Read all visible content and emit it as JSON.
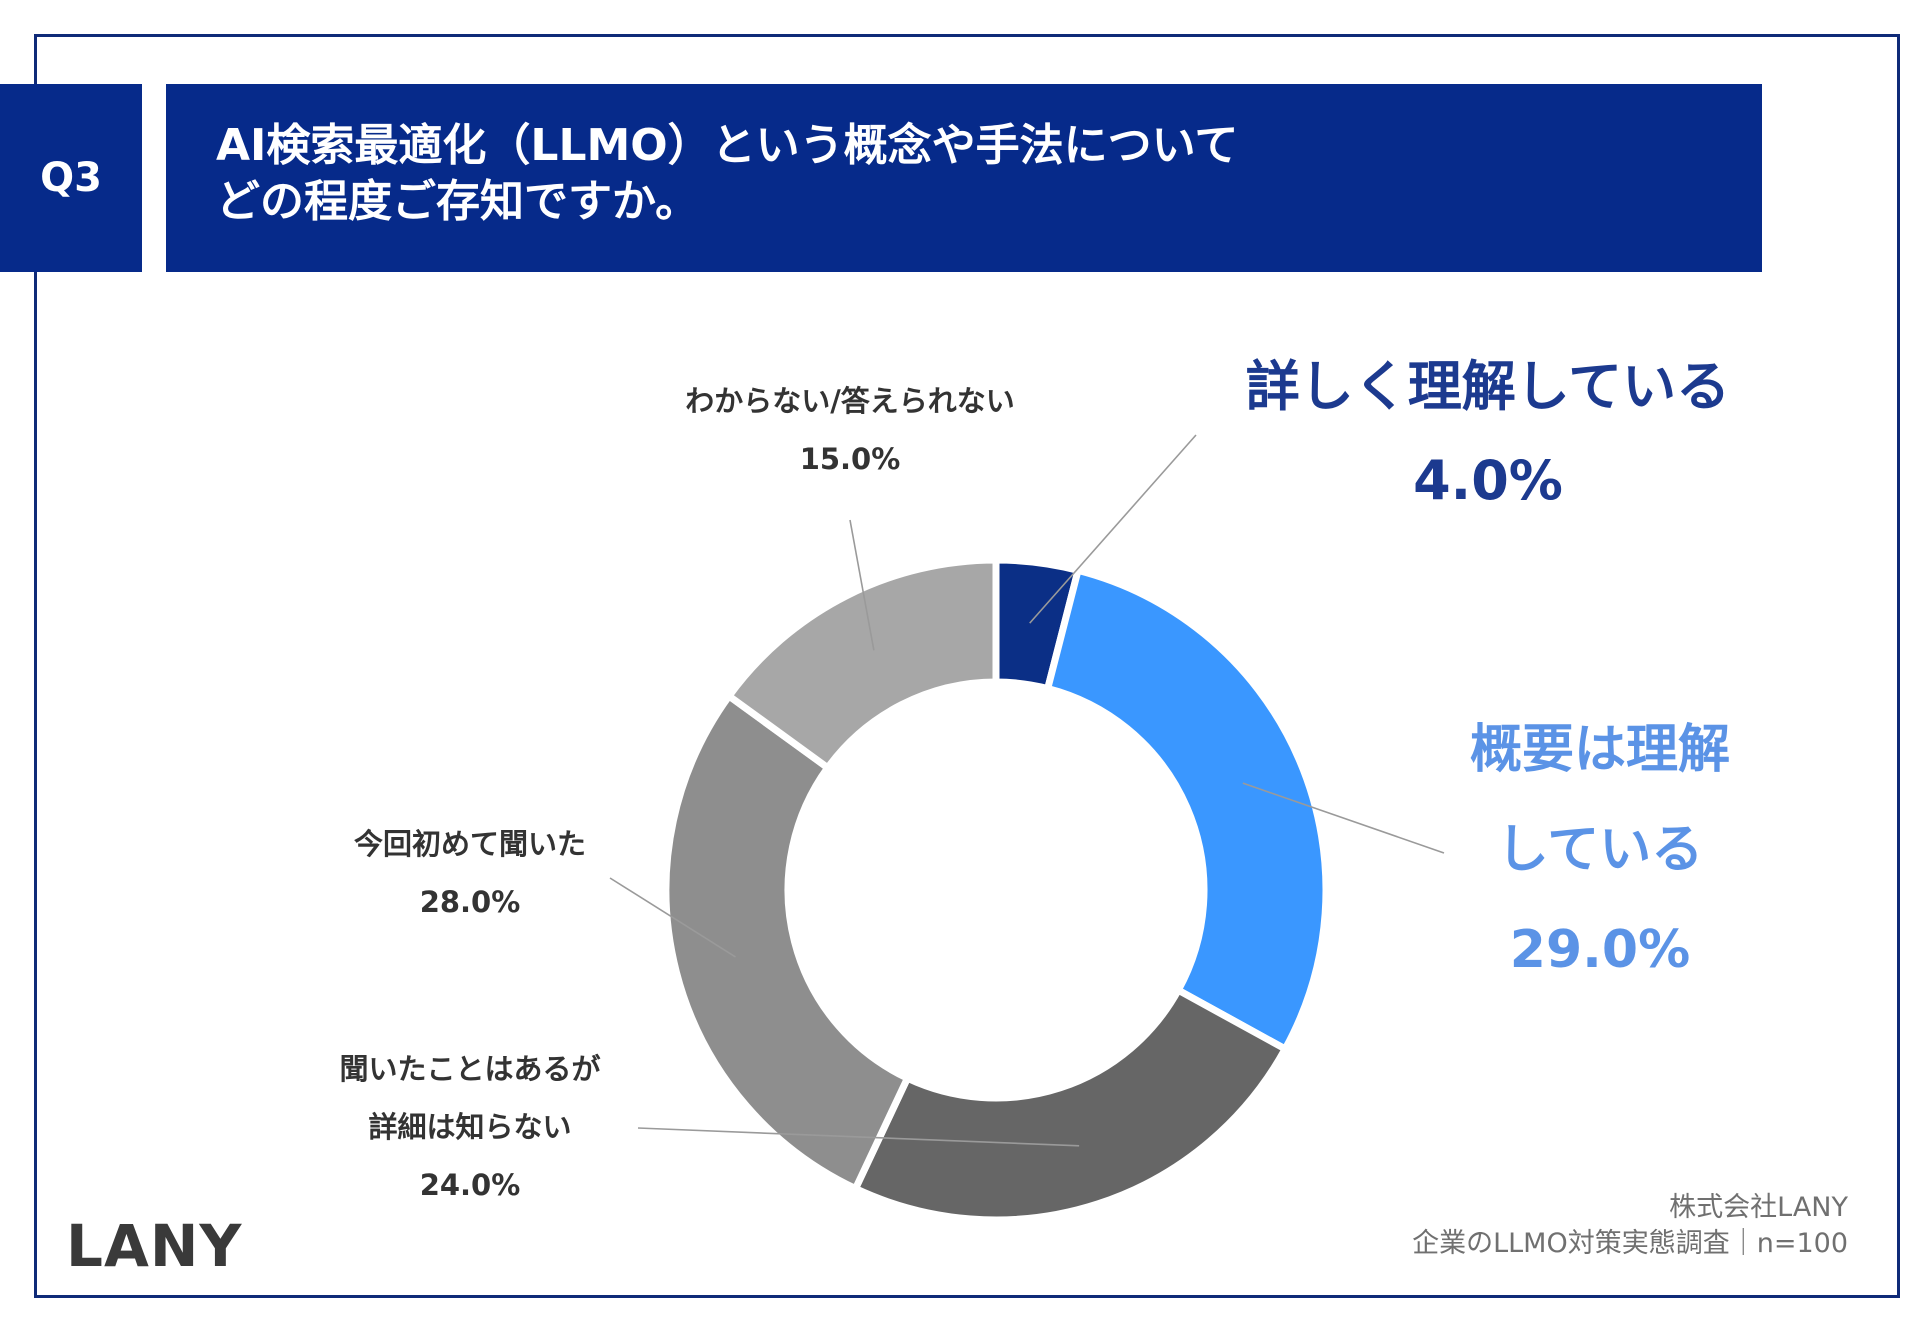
{
  "header": {
    "question_badge": "Q3",
    "title_line1": "AI検索最適化（LLMO）という概念や手法について",
    "title_line2": "どの程度ご存知ですか。"
  },
  "chart_data": {
    "type": "pie",
    "donut": true,
    "title": "AI検索最適化（LLMO）という概念や手法についてどの程度ご存知ですか。",
    "slices": [
      {
        "label": "詳しく理解している",
        "value": 4.0,
        "value_label": "4.0%",
        "color": "#0b2f86"
      },
      {
        "label": "概要は理解している",
        "value": 29.0,
        "value_label": "29.0%",
        "color": "#3a97ff"
      },
      {
        "label": "聞いたことはあるが詳細は知らない",
        "value": 24.0,
        "value_label": "24.0%",
        "color": "#666666"
      },
      {
        "label": "今回初めて聞いた",
        "value": 28.0,
        "value_label": "28.0%",
        "color": "#8e8e8e"
      },
      {
        "label": "わからない/答えられない",
        "value": 15.0,
        "value_label": "15.0%",
        "color": "#a7a7a7"
      }
    ]
  },
  "labels": {
    "s0_line1": "詳しく理解している",
    "s1_line1": "概要は理解",
    "s1_line2": "している",
    "s2_line1": "聞いたことはあるが",
    "s2_line2": "詳細は知らない",
    "s3_line1": "今回初めて聞いた",
    "s4_line1": "わからない/答えられない"
  },
  "logo": "LANY",
  "footer": {
    "company": "株式会社LANY",
    "survey": "企業のLLMO対策実態調査｜n=100"
  },
  "colors": {
    "header_bg": "#062a8a",
    "frame": "#0f2a78"
  }
}
